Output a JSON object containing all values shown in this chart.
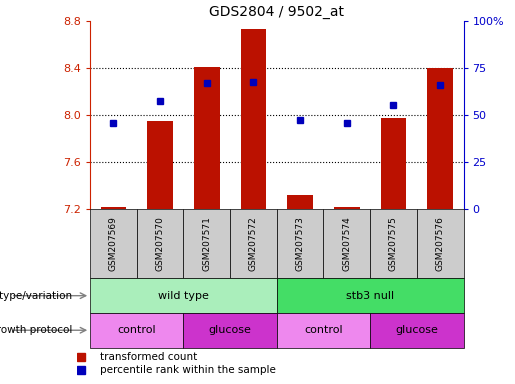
{
  "title": "GDS2804 / 9502_at",
  "samples": [
    "GSM207569",
    "GSM207570",
    "GSM207571",
    "GSM207572",
    "GSM207573",
    "GSM207574",
    "GSM207575",
    "GSM207576"
  ],
  "bar_bottom": 7.2,
  "bar_tops": [
    7.22,
    7.95,
    8.41,
    8.73,
    7.32,
    7.22,
    7.98,
    8.4
  ],
  "percentile_values": [
    7.93,
    8.12,
    8.27,
    8.28,
    7.96,
    7.93,
    8.09,
    8.26
  ],
  "ylim": [
    7.2,
    8.8
  ],
  "yticks": [
    7.2,
    7.6,
    8.0,
    8.4,
    8.8
  ],
  "right_yticks": [
    0,
    25,
    50,
    75,
    100
  ],
  "right_ylabels": [
    "0",
    "25",
    "50",
    "75",
    "100%"
  ],
  "bar_color": "#bb1100",
  "dot_color": "#0000bb",
  "genotype_groups": [
    {
      "label": "wild type",
      "start": 0,
      "end": 4,
      "color": "#aaeebb"
    },
    {
      "label": "stb3 null",
      "start": 4,
      "end": 8,
      "color": "#44dd66"
    }
  ],
  "growth_groups": [
    {
      "label": "control",
      "start": 0,
      "end": 2,
      "color": "#ee88ee"
    },
    {
      "label": "glucose",
      "start": 2,
      "end": 4,
      "color": "#cc33cc"
    },
    {
      "label": "control",
      "start": 4,
      "end": 6,
      "color": "#ee88ee"
    },
    {
      "label": "glucose",
      "start": 6,
      "end": 8,
      "color": "#cc33cc"
    }
  ],
  "genotype_label": "genotype/variation",
  "growth_label": "growth protocol",
  "legend_items": [
    {
      "label": "transformed count",
      "color": "#bb1100"
    },
    {
      "label": "percentile rank within the sample",
      "color": "#0000bb"
    }
  ],
  "xtick_bg": "#cccccc",
  "gridline_color": "black",
  "gridline_style": ":"
}
